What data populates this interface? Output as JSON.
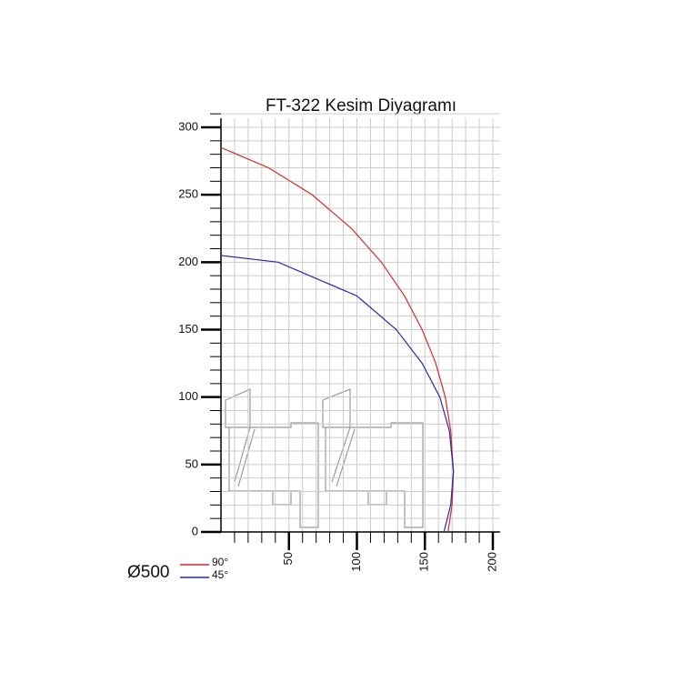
{
  "chart_data": {
    "type": "line",
    "title": "FT-322 Kesim Diyagramı",
    "legend_title": "Ø500",
    "series": [
      {
        "name": "90°",
        "color": "#d42a2a",
        "x": [
          0,
          35,
          67,
          96,
          118,
          135,
          148,
          158,
          165,
          169,
          171,
          170,
          167
        ],
        "y": [
          285,
          270,
          250,
          225,
          200,
          175,
          150,
          125,
          100,
          75,
          45,
          20,
          0
        ]
      },
      {
        "name": "45°",
        "color": "#2a2aa8",
        "x": [
          0,
          42,
          100,
          129,
          148,
          161,
          168,
          171,
          169,
          164
        ],
        "y": [
          205,
          200,
          175,
          150,
          125,
          100,
          75,
          45,
          20,
          0
        ]
      }
    ],
    "xlim": [
      0,
      200
    ],
    "xticks": [
      50,
      100,
      150,
      200
    ],
    "ylim": [
      0,
      300
    ],
    "yticks": [
      0,
      50,
      100,
      150,
      200,
      250,
      300
    ],
    "grid": true
  }
}
